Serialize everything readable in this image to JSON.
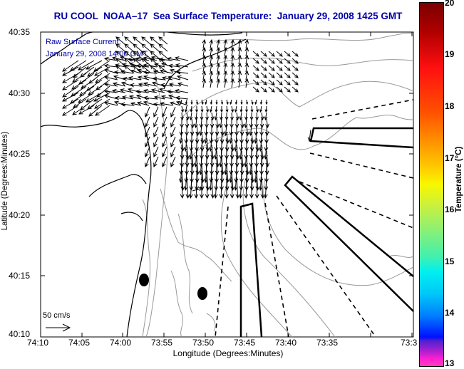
{
  "title": "RU COOL  NOAA–17  Sea Surface Temperature:  January 29, 2008 1425 GMT",
  "annotation": {
    "line1": "Raw Surface Current:",
    "line2": "January 29, 2008 14:00 GMT"
  },
  "scale_arrow": {
    "label": "50 cm/s",
    "speed_cm_s": 50
  },
  "axes": {
    "xlabel": "Longitude (Degrees:Minutes)",
    "ylabel": "Latitude (Degrees:Minutes)",
    "xticks": [
      "74:10",
      "74:05",
      "74:00",
      "73:55",
      "73:50",
      "73:45",
      "73:40",
      "73:35",
      "73:3"
    ],
    "yticks": [
      "40:35",
      "40:30",
      "40:25",
      "40:20",
      "40:15",
      "40:10"
    ]
  },
  "colorbar": {
    "label": "Temperature (°C)",
    "ticks": [
      "20",
      "19",
      "18",
      "17",
      "16",
      "15",
      "14",
      "13"
    ],
    "range": [
      13,
      20
    ]
  },
  "colors": {
    "title": "#0000a8",
    "contour": "#999999",
    "coast": "#000000"
  }
}
